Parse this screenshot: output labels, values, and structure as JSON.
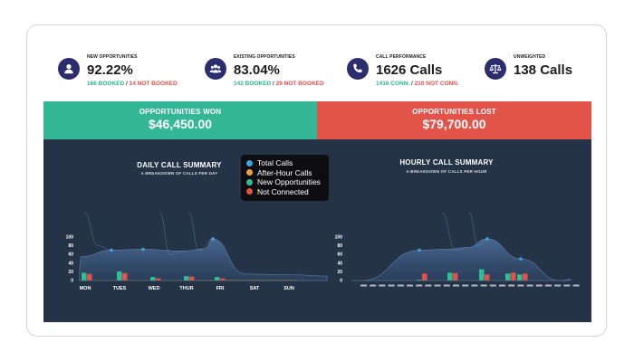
{
  "kpis": [
    {
      "label": "NEW OPPORTUNITIES",
      "value": "92.22%",
      "sub_green": "166 BOOKED",
      "sub_sep": " / ",
      "sub_red": "14 NOT BOOKED",
      "icon": "user-icon"
    },
    {
      "label": "EXISTING OPPORTUNITIES",
      "value": "83.04%",
      "sub_green": "142 BOOKED",
      "sub_sep": " / ",
      "sub_red": "29 NOT BOOKED",
      "icon": "users-icon"
    },
    {
      "label": "CALL PERFORMANCE",
      "value": "1626 Calls",
      "sub_green": "1416 CONN.",
      "sub_sep": " / ",
      "sub_red": "210 NOT CONN.",
      "icon": "phone-icon"
    },
    {
      "label": "UNWEIGHTED",
      "value": "138 Calls",
      "icon": "scale-icon"
    }
  ],
  "banners": {
    "won_title": "OPPORTUNITIES WON",
    "won_value": "$46,450.00",
    "lost_title": "OPPORTUNITIES LOST",
    "lost_value": "$79,700.00"
  },
  "colors": {
    "won": "#33b796",
    "lost": "#e2544a",
    "panel": "#243346",
    "total_calls": "#3aa6e0",
    "after_hour": "#e8a33d",
    "new_opp": "#2fbf95",
    "not_connected": "#e2514a"
  },
  "legend": [
    {
      "label": "Total Calls",
      "color": "#3aa6e0"
    },
    {
      "label": "After-Hour Calls",
      "color": "#e8a33d"
    },
    {
      "label": "New Opportunities",
      "color": "#2fbf95"
    },
    {
      "label": "Not Connected",
      "color": "#e2514a"
    }
  ],
  "chart_data": [
    {
      "type": "area",
      "title": "DAILY CALL SUMMARY",
      "subtitle": "A BREAKDOWN OF CALLS PER DAY",
      "categories": [
        "MON",
        "TUES",
        "WED",
        "THUR",
        "FRI",
        "SAT",
        "SUN"
      ],
      "ylim": [
        0,
        100
      ],
      "yticks": [
        0,
        20,
        40,
        60,
        80,
        100
      ],
      "series": [
        {
          "name": "Total Calls",
          "values": [
            70,
            72,
            68,
            73,
            96,
            15,
            13
          ]
        },
        {
          "name": "After-Hour Calls",
          "values": [
            1,
            1,
            1,
            2,
            2,
            2,
            1
          ]
        },
        {
          "name": "New Opportunities",
          "values": [
            18,
            21,
            8,
            10,
            8,
            0,
            0
          ]
        },
        {
          "name": "Not Connected",
          "values": [
            15,
            17,
            5,
            9,
            5,
            0,
            0
          ]
        }
      ]
    },
    {
      "type": "area",
      "title": "HOURLY CALL SUMMARY",
      "subtitle": "A BREAKDOWN OF CALLS PER HOUR",
      "ylim": [
        0,
        100
      ],
      "yticks": [
        0,
        20,
        40,
        60,
        80,
        100
      ],
      "series": [
        {
          "name": "Total Calls",
          "values": [
            0,
            70,
            72,
            76,
            96,
            50,
            0
          ]
        },
        {
          "name": "After-Hour Calls",
          "values": [
            0,
            0,
            0,
            0,
            5,
            12,
            8
          ]
        },
        {
          "name": "New Opportunities",
          "values": [
            2,
            18,
            26,
            16,
            14
          ]
        },
        {
          "name": "Not Connected",
          "values": [
            16,
            17,
            14,
            18,
            16
          ]
        }
      ]
    }
  ]
}
